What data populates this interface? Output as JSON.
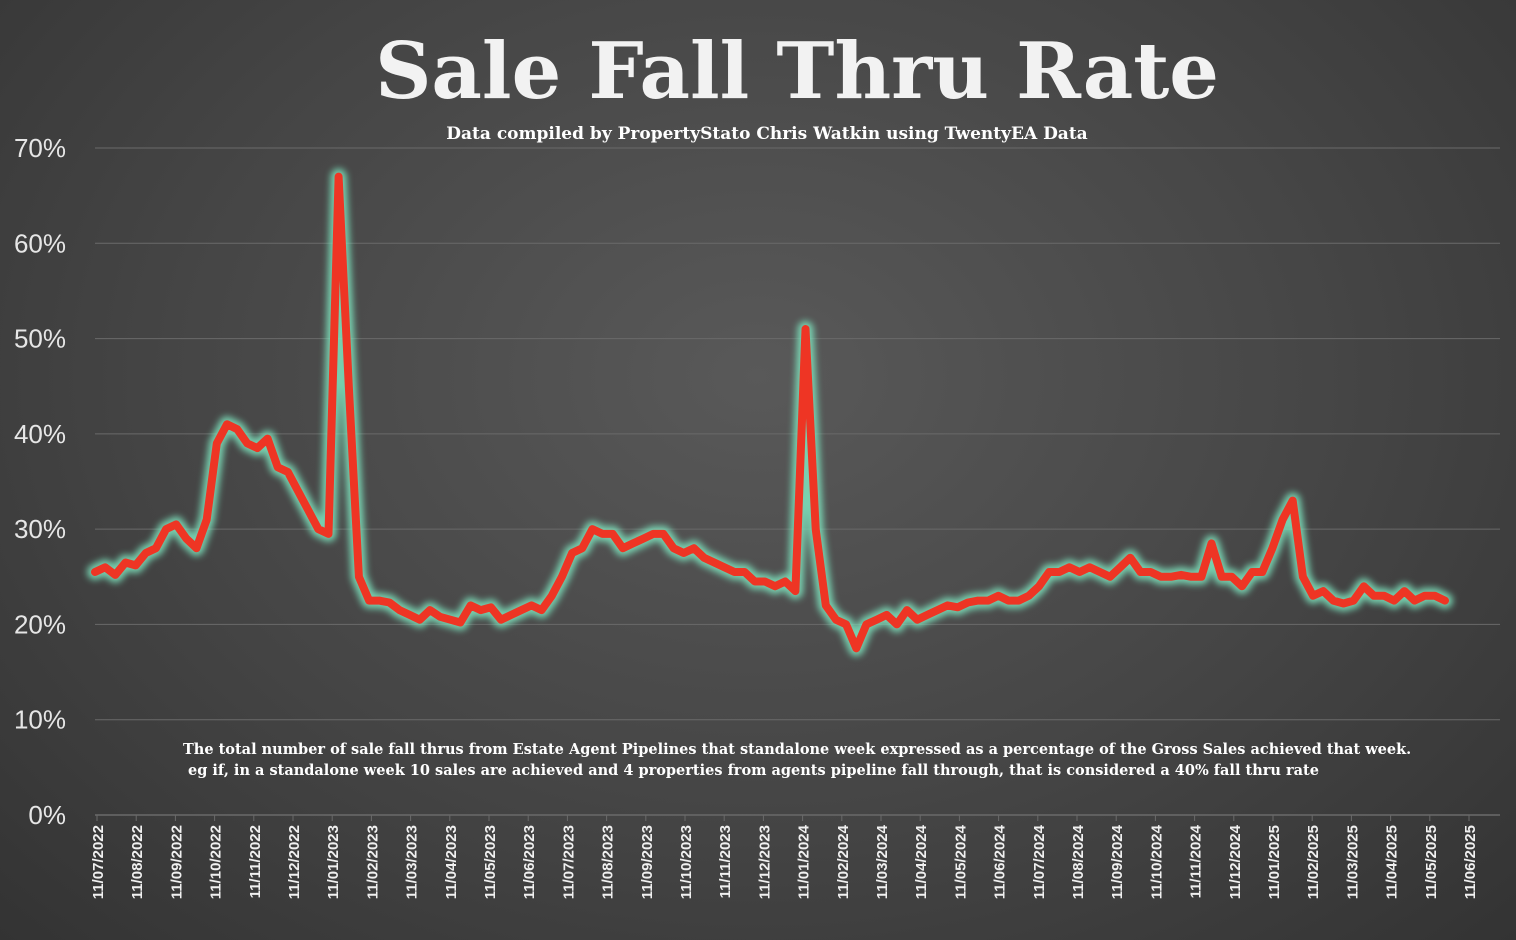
{
  "chart_data": {
    "type": "line",
    "title": "Sale Fall Thru Rate",
    "subtitle": "Data compiled by PropertyStato Chris Watkin using TwentyEA Data",
    "annotation_lines": [
      "The total number of sale fall thrus from Estate Agent Pipelines that standalone week expressed as a percentage of the Gross Sales achieved that week.",
      "eg if, in a standalone week 10 sales are achieved and 4 properties from agents pipeline fall through, that is considered a 40%  fall thru rate"
    ],
    "ylim": [
      0,
      70
    ],
    "y_ticks": [
      0,
      10,
      20,
      30,
      40,
      50,
      60,
      70
    ],
    "y_tick_labels": [
      "0%",
      "10%",
      "20%",
      "30%",
      "40%",
      "50%",
      "60%",
      "70%"
    ],
    "x_tick_labels": [
      "11/07/2022",
      "11/08/2022",
      "11/09/2022",
      "11/10/2022",
      "11/11/2022",
      "11/12/2022",
      "11/01/2023",
      "11/02/2023",
      "11/03/2023",
      "11/04/2023",
      "11/05/2023",
      "11/06/2023",
      "11/07/2023",
      "11/08/2023",
      "11/09/2023",
      "11/10/2023",
      "11/11/2023",
      "11/12/2023",
      "11/01/2024",
      "11/02/2024",
      "11/03/2024",
      "11/04/2024",
      "11/05/2024",
      "11/06/2024",
      "11/07/2024",
      "11/08/2024",
      "11/09/2024",
      "11/10/2024",
      "11/11/2024",
      "11/12/2024",
      "11/01/2025",
      "11/02/2025",
      "11/03/2025",
      "11/04/2025",
      "11/05/2025",
      "11/06/2025"
    ],
    "grid": true,
    "colors": {
      "line": "#ee3524",
      "glow": "#7fe6c0",
      "grid": "#6a6a6a",
      "background": "#454545"
    },
    "series": [
      {
        "values": [
          25.5,
          26,
          25.2,
          26.5,
          26.2,
          27.5,
          28,
          30,
          30.5,
          29,
          28,
          31,
          39,
          41,
          40.5,
          39,
          38.5,
          39.5,
          36.5,
          36,
          34,
          32,
          30,
          29.5,
          67,
          45,
          25,
          22.5,
          22.5,
          22.3,
          21.5,
          21,
          20.5,
          21.5,
          20.8,
          20.5,
          20.2,
          22,
          21.5,
          21.8,
          20.5,
          21,
          21.5,
          22,
          21.5,
          23,
          25,
          27.5,
          28,
          30,
          29.5,
          29.5,
          28,
          28.5,
          29,
          29.5,
          29.5,
          28,
          27.5,
          28,
          27,
          26.5,
          26,
          25.5,
          25.5,
          24.5,
          24.5,
          24,
          24.5,
          23.5,
          51,
          30,
          22,
          20.5,
          20,
          17.5,
          20,
          20.5,
          21,
          20,
          21.5,
          20.5,
          21,
          21.5,
          22,
          21.8,
          22.3,
          22.5,
          22.5,
          23,
          22.5,
          22.5,
          23,
          24,
          25.5,
          25.5,
          26,
          25.5,
          26,
          25.5,
          25,
          26,
          27,
          25.5,
          25.5,
          25,
          25,
          25.2,
          25,
          25,
          28.5,
          25,
          25,
          24,
          25.5,
          25.5,
          28,
          31,
          33,
          25,
          23,
          23.5,
          22.5,
          22.2,
          22.5,
          24,
          23,
          23,
          22.5,
          23.5,
          22.5,
          23,
          23,
          22.5
        ]
      }
    ]
  }
}
